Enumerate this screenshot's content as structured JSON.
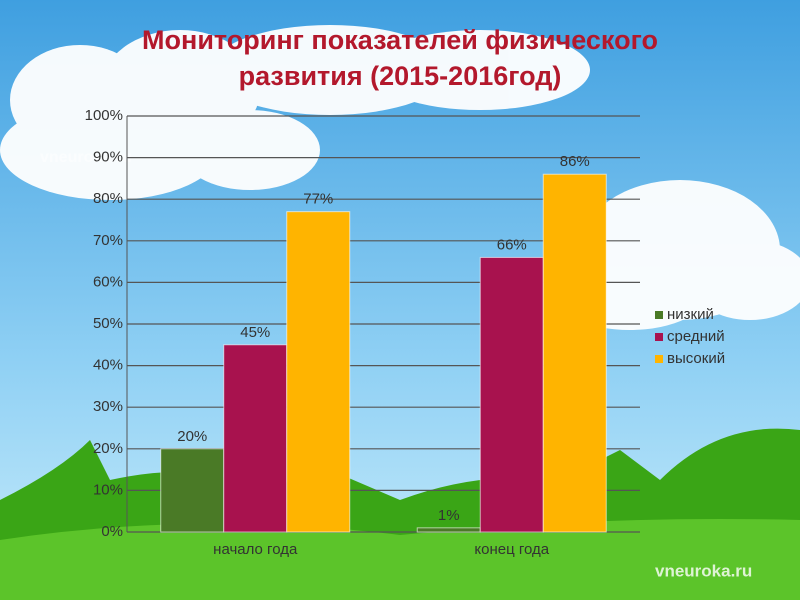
{
  "chart_data": {
    "type": "bar",
    "title": "Мониторинг показателей физического развития (2015-2016год)",
    "watermark": "vneuroka.ru",
    "categories": [
      "начало года",
      "конец года"
    ],
    "series": [
      {
        "name": "низкий",
        "color": "#4a7a26",
        "values": [
          20,
          1
        ],
        "value_labels": [
          "20%",
          "1%"
        ]
      },
      {
        "name": "средний",
        "color": "#a8124e",
        "values": [
          45,
          66
        ],
        "value_labels": [
          "45%",
          "66%"
        ]
      },
      {
        "name": "высокий",
        "color": "#ffb400",
        "values": [
          77,
          86
        ],
        "value_labels": [
          "77%",
          "86%"
        ]
      }
    ],
    "ylim": [
      0,
      100
    ],
    "yticks": [
      {
        "value": 0,
        "label": "0%"
      },
      {
        "value": 10,
        "label": "10%"
      },
      {
        "value": 20,
        "label": "20%"
      },
      {
        "value": 30,
        "label": "30%"
      },
      {
        "value": 40,
        "label": "40%"
      },
      {
        "value": 50,
        "label": "50%"
      },
      {
        "value": 60,
        "label": "60%"
      },
      {
        "value": 70,
        "label": "70%"
      },
      {
        "value": 80,
        "label": "80%"
      },
      {
        "value": 90,
        "label": "90%"
      },
      {
        "value": 100,
        "label": "100%"
      }
    ],
    "grid": true,
    "legend": "right"
  }
}
